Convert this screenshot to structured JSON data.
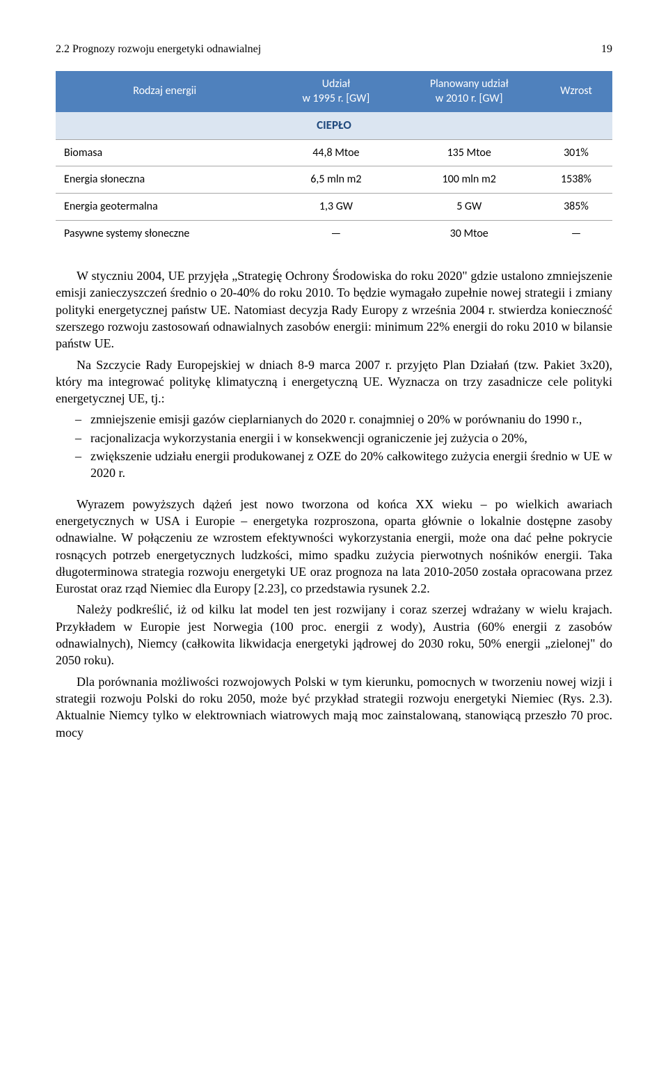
{
  "header": {
    "section": "2.2 Prognozy rozwoju energetyki odnawialnej",
    "page": "19"
  },
  "table": {
    "columns": [
      "Rodzaj energii",
      "Udział\nw 1995 r. [GW]",
      "Planowany udział\nw 2010 r. [GW]",
      "Wzrost"
    ],
    "section_label": "CIEPŁO",
    "rows": [
      [
        "Biomasa",
        "44,8 Mtoe",
        "135 Mtoe",
        "301%"
      ],
      [
        "Energia słoneczna",
        "6,5 mln m2",
        "100 mln m2",
        "1538%"
      ],
      [
        "Energia geotermalna",
        "1,3 GW",
        "5 GW",
        "385%"
      ],
      [
        "Pasywne systemy słoneczne",
        "—",
        "30 Mtoe",
        "—"
      ]
    ],
    "header_bg": "#4f81bd",
    "header_fg": "#ffffff",
    "section_bg": "#dbe5f1",
    "section_fg": "#1f497d",
    "border_color": "#a6a6a6"
  },
  "body": {
    "p1": "W styczniu 2004, UE przyjęła „Strategię Ochrony Środowiska do roku 2020\" gdzie ustalono zmniejszenie emisji zanieczyszczeń średnio o 20-40% do roku 2010. To będzie wymagało zupełnie nowej strategii i zmiany polityki energetycznej państw UE. Natomiast decyzja Rady Europy z września 2004 r. stwierdza konieczność szerszego rozwoju zastosowań odnawialnych zasobów energii: minimum 22% energii do roku 2010 w bilansie państw UE.",
    "p2": "Na Szczycie Rady Europejskiej w dniach 8-9 marca 2007 r. przyjęto Plan Działań (tzw. Pakiet 3x20), który ma integrować politykę klimatyczną i energetyczną UE. Wyznacza on trzy zasadnicze cele polityki energetycznej UE, tj.:",
    "list": [
      "zmniejszenie emisji gazów cieplarnianych do 2020 r. conajmniej o 20% w porównaniu do 1990 r.,",
      "racjonalizacja wykorzystania energii i w konsekwencji ograniczenie jej zużycia o 20%,",
      "zwiększenie udziału energii produkowanej z OZE do 20% całkowitego zużycia energii średnio w UE w 2020 r."
    ],
    "p3": "Wyrazem powyższych dążeń jest nowo tworzona od końca XX wieku – po wielkich awariach energetycznych w USA i Europie – energetyka rozproszona, oparta głównie o lokalnie dostępne zasoby odnawialne. W połączeniu ze wzrostem efektywności wykorzystania energii, może ona dać pełne pokrycie rosnących potrzeb energetycznych ludzkości, mimo spadku zużycia pierwotnych nośników energii. Taka długoterminowa strategia rozwoju energetyki UE oraz prognoza na lata 2010-2050 została opracowana przez Eurostat oraz rząd Niemiec dla Europy [2.23], co przedstawia rysunek 2.2.",
    "p4": "Należy podkreślić, iż od kilku lat model ten jest rozwijany i coraz szerzej wdrażany w wielu krajach. Przykładem w Europie jest Norwegia (100 proc. energii z wody), Austria (60% energii z zasobów odnawialnych), Niemcy (całkowita likwidacja energetyki jądrowej do 2030 roku, 50% energii „zielonej\" do 2050 roku).",
    "p5": "Dla porównania możliwości rozwojowych Polski w tym kierunku, pomocnych w tworzeniu nowej wizji i strategii rozwoju Polski do roku 2050, może być przykład strategii rozwoju energetyki Niemiec (Rys. 2.3). Aktualnie Niemcy tylko w elektrowniach wiatrowych mają moc zainstalowaną, stanowiącą przeszło 70 proc. mocy"
  }
}
